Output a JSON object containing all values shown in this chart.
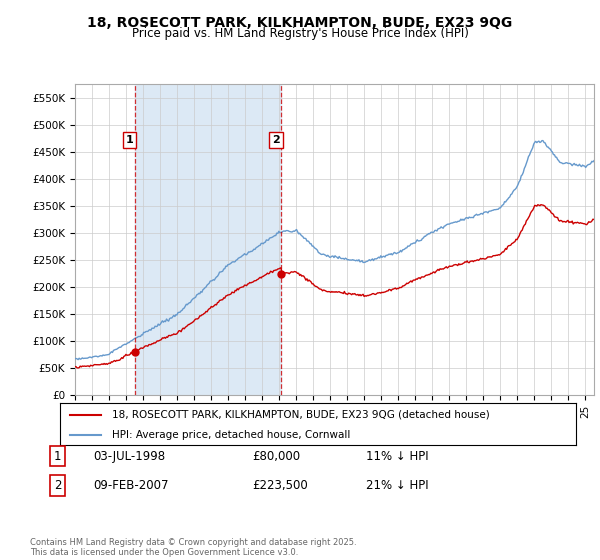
{
  "title_line1": "18, ROSECOTT PARK, KILKHAMPTON, BUDE, EX23 9QG",
  "title_line2": "Price paid vs. HM Land Registry's House Price Index (HPI)",
  "ylim": [
    0,
    575000
  ],
  "yticks": [
    0,
    50000,
    100000,
    150000,
    200000,
    250000,
    300000,
    350000,
    400000,
    450000,
    500000,
    550000
  ],
  "ytick_labels": [
    "£0",
    "£50K",
    "£100K",
    "£150K",
    "£200K",
    "£250K",
    "£300K",
    "£350K",
    "£400K",
    "£450K",
    "£500K",
    "£550K"
  ],
  "xlim_start": 1995.0,
  "xlim_end": 2025.5,
  "hpi_color": "#6699CC",
  "price_color": "#CC0000",
  "shade_color": "#DCE9F5",
  "purchase1_date": 1998.5,
  "purchase1_price": 80000,
  "purchase2_date": 2007.12,
  "purchase2_price": 223500,
  "vline_color": "#CC0000",
  "legend_line1": "18, ROSECOTT PARK, KILKHAMPTON, BUDE, EX23 9QG (detached house)",
  "legend_line2": "HPI: Average price, detached house, Cornwall",
  "table_row1": [
    "1",
    "03-JUL-1998",
    "£80,000",
    "11% ↓ HPI"
  ],
  "table_row2": [
    "2",
    "09-FEB-2007",
    "£223,500",
    "21% ↓ HPI"
  ],
  "footer": "Contains HM Land Registry data © Crown copyright and database right 2025.\nThis data is licensed under the Open Government Licence v3.0.",
  "background_color": "#ffffff",
  "grid_color": "#cccccc",
  "title_fontsize": 10,
  "subtitle_fontsize": 8.5
}
